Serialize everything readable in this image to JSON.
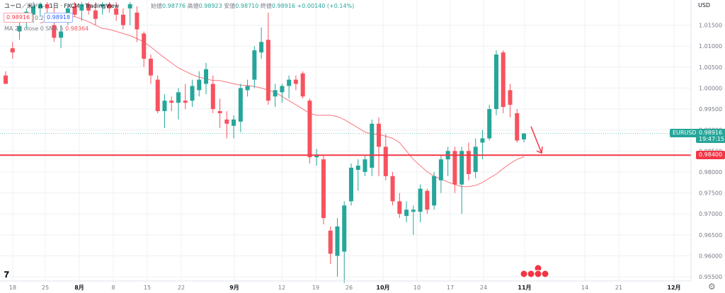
{
  "header": {
    "symbol_title": "ユーロ／米ドル · 1日 · FXCM · TradingView",
    "ohlc": {
      "open_label": "始値",
      "open": "0.98776",
      "high_label": "高値",
      "high": "0.98923",
      "low_label": "安値",
      "low": "0.98710",
      "close_label": "終値",
      "close": "0.98916",
      "change": "+0.00140 (+0.14%)"
    },
    "bid": "0.98916",
    "spread": "0.2",
    "ask": "0.98918",
    "ma_label": "MA 20 close 0 SMA 5",
    "ma_value": "0.98364"
  },
  "price_axis": {
    "currency": "USD",
    "ticks": [
      "1.01500",
      "1.01000",
      "1.00500",
      "1.00000",
      "0.99500",
      "0.99000",
      "0.98500",
      "0.98000",
      "0.97500",
      "0.97000",
      "0.96500",
      "0.96000",
      "0.95500"
    ]
  },
  "time_axis": {
    "ticks": [
      "18",
      "25",
      "8月",
      "8",
      "15",
      "22",
      "9月",
      "12",
      "19",
      "26",
      "10月",
      "10",
      "17",
      "24",
      "11月",
      "14",
      "21",
      "12月"
    ]
  },
  "tags": {
    "symbol": "EURUSD",
    "last_price": "0.98916",
    "countdown": "19:47:15",
    "line_price": "0.98400"
  },
  "colors": {
    "up": "#26a69a",
    "down": "#f7525f",
    "ma": "#f7525f",
    "hline": "#f23645",
    "grid": "#eef0f3",
    "text": "#787b86"
  },
  "chart_data": {
    "type": "candlestick",
    "symbol": "EURUSD",
    "timeframe": "1D",
    "ylim": [
      0.954,
      1.021
    ],
    "x_ticks": [
      "18",
      "25",
      "8月",
      "8",
      "15",
      "22",
      "9月",
      "12",
      "19",
      "26",
      "10月",
      "10",
      "17",
      "24",
      "11月",
      "14",
      "21",
      "12月"
    ],
    "horizontal_line": 0.984,
    "ma_series": [
      1.0155,
      1.016,
      1.0165,
      1.017,
      1.0172,
      1.017,
      1.0165,
      1.0158,
      1.015,
      1.0142,
      1.014,
      1.0135,
      1.013,
      1.0125,
      1.0118,
      1.011,
      1.0098,
      1.0085,
      1.0072,
      1.006,
      1.0048,
      1.004,
      1.0032,
      1.0026,
      1.0022,
      1.0018,
      1.0018,
      1.0014,
      1.001,
      1.0007,
      1.0006,
      1.0004,
      1.0,
      0.9995,
      0.999,
      0.998,
      0.997,
      0.996,
      0.995,
      0.994,
      0.9935,
      0.9935,
      0.9935,
      0.9932,
      0.9925,
      0.9915,
      0.9905,
      0.9895,
      0.989,
      0.989,
      0.9885,
      0.988,
      0.987,
      0.985,
      0.983,
      0.9815,
      0.98,
      0.979,
      0.9783,
      0.9776,
      0.977,
      0.9765,
      0.9765,
      0.9768,
      0.9775,
      0.9785,
      0.9795,
      0.9808,
      0.982,
      0.983,
      0.9836
    ],
    "candles": [
      {
        "o": 1.003,
        "h": 1.004,
        "l": 1.001,
        "c": 1.001
      },
      {
        "o": 1.0095,
        "h": 1.011,
        "l": 1.007,
        "c": 1.0085
      },
      {
        "o": 1.0135,
        "h": 1.016,
        "l": 1.0115,
        "c": 1.0148
      },
      {
        "o": 1.016,
        "h": 1.019,
        "l": 1.014,
        "c": 1.0182
      },
      {
        "o": 1.0175,
        "h": 1.0205,
        "l": 1.0155,
        "c": 1.0195
      },
      {
        "o": 1.019,
        "h": 1.0205,
        "l": 1.017,
        "c": 1.02
      },
      {
        "o": 1.02,
        "h": 1.0205,
        "l": 1.018,
        "c": 1.019
      },
      {
        "o": 1.015,
        "h": 1.019,
        "l": 1.011,
        "c": 1.012
      },
      {
        "o": 1.012,
        "h": 1.015,
        "l": 1.0095,
        "c": 1.0135
      },
      {
        "o": 1.0165,
        "h": 1.02,
        "l": 1.015,
        "c": 1.019
      },
      {
        "o": 1.0195,
        "h": 1.0205,
        "l": 1.017,
        "c": 1.0175
      },
      {
        "o": 1.0185,
        "h": 1.0205,
        "l": 1.016,
        "c": 1.02
      },
      {
        "o": 1.02,
        "h": 1.0205,
        "l": 1.0175,
        "c": 1.0185
      },
      {
        "o": 1.0185,
        "h": 1.0205,
        "l": 1.015,
        "c": 1.0165
      },
      {
        "o": 1.0195,
        "h": 1.0205,
        "l": 1.0175,
        "c": 1.02
      },
      {
        "o": 1.02,
        "h": 1.0205,
        "l": 1.018,
        "c": 1.019
      },
      {
        "o": 1.019,
        "h": 1.0205,
        "l": 1.016,
        "c": 1.0175
      },
      {
        "o": 1.0175,
        "h": 1.019,
        "l": 1.014,
        "c": 1.015
      },
      {
        "o": 1.019,
        "h": 1.0205,
        "l": 1.015,
        "c": 1.02
      },
      {
        "o": 1.018,
        "h": 1.0195,
        "l": 1.011,
        "c": 1.014
      },
      {
        "o": 1.013,
        "h": 1.0135,
        "l": 1.005,
        "c": 1.007
      },
      {
        "o": 1.007,
        "h": 1.008,
        "l": 1.001,
        "c": 1.003
      },
      {
        "o": 1.002,
        "h": 1.003,
        "l": 0.994,
        "c": 0.9945
      },
      {
        "o": 0.9945,
        "h": 0.9985,
        "l": 0.9905,
        "c": 0.997
      },
      {
        "o": 0.997,
        "h": 0.998,
        "l": 0.9945,
        "c": 0.9965
      },
      {
        "o": 0.9965,
        "h": 1.0,
        "l": 0.9925,
        "c": 0.999
      },
      {
        "o": 0.997,
        "h": 1.001,
        "l": 0.995,
        "c": 0.9965
      },
      {
        "o": 0.997,
        "h": 1.002,
        "l": 0.9955,
        "c": 1.0005
      },
      {
        "o": 0.9995,
        "h": 1.004,
        "l": 0.998,
        "c": 1.002
      },
      {
        "o": 1.001,
        "h": 1.006,
        "l": 0.9985,
        "c": 1.0045
      },
      {
        "o": 1.001,
        "h": 1.003,
        "l": 0.994,
        "c": 0.995
      },
      {
        "o": 0.9945,
        "h": 0.9975,
        "l": 0.9905,
        "c": 0.994
      },
      {
        "o": 0.9925,
        "h": 0.9945,
        "l": 0.988,
        "c": 0.9915
      },
      {
        "o": 0.991,
        "h": 0.9935,
        "l": 0.988,
        "c": 0.9925
      },
      {
        "o": 0.992,
        "h": 1.001,
        "l": 0.9895,
        "c": 1.0
      },
      {
        "o": 0.9995,
        "h": 1.002,
        "l": 0.998,
        "c": 1.0005
      },
      {
        "o": 1.002,
        "h": 1.01,
        "l": 1.0,
        "c": 1.009
      },
      {
        "o": 1.0085,
        "h": 1.0145,
        "l": 1.007,
        "c": 1.011
      },
      {
        "o": 1.0115,
        "h": 1.018,
        "l": 0.996,
        "c": 0.997
      },
      {
        "o": 0.998,
        "h": 1.001,
        "l": 0.9955,
        "c": 0.9995
      },
      {
        "o": 0.999,
        "h": 1.001,
        "l": 0.9965,
        "c": 1.0005
      },
      {
        "o": 1.0005,
        "h": 1.003,
        "l": 0.9975,
        "c": 1.002
      },
      {
        "o": 1.002,
        "h": 1.003,
        "l": 0.9995,
        "c": 1.001
      },
      {
        "o": 1.0035,
        "h": 1.004,
        "l": 0.9975,
        "c": 0.998
      },
      {
        "o": 0.997,
        "h": 0.9975,
        "l": 0.982,
        "c": 0.9835
      },
      {
        "o": 0.9835,
        "h": 0.9855,
        "l": 0.9815,
        "c": 0.984
      },
      {
        "o": 0.983,
        "h": 0.984,
        "l": 0.9675,
        "c": 0.969
      },
      {
        "o": 0.966,
        "h": 0.967,
        "l": 0.958,
        "c": 0.9605
      },
      {
        "o": 0.96,
        "h": 0.969,
        "l": 0.955,
        "c": 0.967
      },
      {
        "o": 0.961,
        "h": 0.973,
        "l": 0.9535,
        "c": 0.972
      },
      {
        "o": 0.973,
        "h": 0.982,
        "l": 0.972,
        "c": 0.981
      },
      {
        "o": 0.9805,
        "h": 0.983,
        "l": 0.9755,
        "c": 0.9815
      },
      {
        "o": 0.98,
        "h": 0.984,
        "l": 0.979,
        "c": 0.983
      },
      {
        "o": 0.981,
        "h": 0.9925,
        "l": 0.979,
        "c": 0.9915
      },
      {
        "o": 0.9915,
        "h": 0.993,
        "l": 0.979,
        "c": 0.986
      },
      {
        "o": 0.986,
        "h": 0.989,
        "l": 0.978,
        "c": 0.979
      },
      {
        "o": 0.979,
        "h": 0.98,
        "l": 0.972,
        "c": 0.973
      },
      {
        "o": 0.973,
        "h": 0.975,
        "l": 0.969,
        "c": 0.97
      },
      {
        "o": 0.9695,
        "h": 0.973,
        "l": 0.968,
        "c": 0.971
      },
      {
        "o": 0.9705,
        "h": 0.972,
        "l": 0.965,
        "c": 0.971
      },
      {
        "o": 0.9705,
        "h": 0.977,
        "l": 0.968,
        "c": 0.976
      },
      {
        "o": 0.9755,
        "h": 0.976,
        "l": 0.97,
        "c": 0.971
      },
      {
        "o": 0.972,
        "h": 0.98,
        "l": 0.971,
        "c": 0.979
      },
      {
        "o": 0.978,
        "h": 0.984,
        "l": 0.975,
        "c": 0.983
      },
      {
        "o": 0.983,
        "h": 0.986,
        "l": 0.979,
        "c": 0.985
      },
      {
        "o": 0.985,
        "h": 0.986,
        "l": 0.975,
        "c": 0.977
      },
      {
        "o": 0.977,
        "h": 0.986,
        "l": 0.97,
        "c": 0.985
      },
      {
        "o": 0.985,
        "h": 0.987,
        "l": 0.978,
        "c": 0.9795
      },
      {
        "o": 0.98,
        "h": 0.988,
        "l": 0.9785,
        "c": 0.986
      },
      {
        "o": 0.987,
        "h": 0.99,
        "l": 0.983,
        "c": 0.988
      },
      {
        "o": 0.988,
        "h": 0.996,
        "l": 0.9875,
        "c": 0.995
      },
      {
        "o": 0.995,
        "h": 1.009,
        "l": 0.9935,
        "c": 1.008
      },
      {
        "o": 1.0085,
        "h": 1.009,
        "l": 0.994,
        "c": 0.9955
      },
      {
        "o": 0.9995,
        "h": 1.001,
        "l": 0.993,
        "c": 0.996
      },
      {
        "o": 0.994,
        "h": 0.995,
        "l": 0.987,
        "c": 0.9875
      },
      {
        "o": 0.98776,
        "h": 0.98923,
        "l": 0.9871,
        "c": 0.98916
      }
    ]
  }
}
